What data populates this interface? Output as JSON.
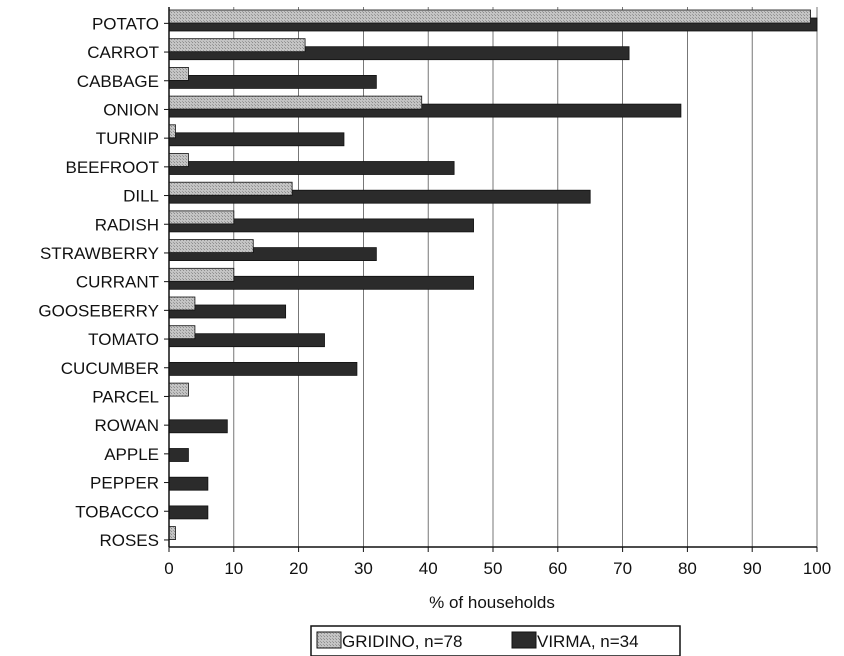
{
  "chart_data": {
    "type": "bar",
    "orientation": "horizontal",
    "title": "",
    "xlabel": "% of households",
    "ylabel": "",
    "xlim": [
      0,
      100
    ],
    "xticks": [
      0,
      10,
      20,
      30,
      40,
      50,
      60,
      70,
      80,
      90,
      100
    ],
    "grid": "vertical",
    "legend_position": "bottom",
    "categories": [
      "POTATO",
      "CARROT",
      "CABBAGE",
      "ONION",
      "TURNIP",
      "BEEFROOT",
      "DILL",
      "RADISH",
      "STRAWBERRY",
      "CURRANT",
      "GOOSEBERRY",
      "TOMATO",
      "CUCUMBER",
      "PARCEL",
      "ROWAN",
      "APPLE",
      "PEPPER",
      "TOBACCO",
      "ROSES"
    ],
    "series": [
      {
        "name": "VIRMA, n=34",
        "color": "#2b2b2b",
        "values": [
          100,
          71,
          32,
          79,
          27,
          44,
          65,
          47,
          32,
          47,
          18,
          24,
          29,
          0,
          9,
          3,
          6,
          6,
          0
        ]
      },
      {
        "name": "GRIDINO, n=78",
        "color": "#b8b8b8",
        "values": [
          99,
          21,
          3,
          39,
          1,
          3,
          19,
          10,
          13,
          10,
          4,
          4,
          0,
          3,
          0,
          0,
          0,
          0,
          1
        ]
      }
    ]
  }
}
